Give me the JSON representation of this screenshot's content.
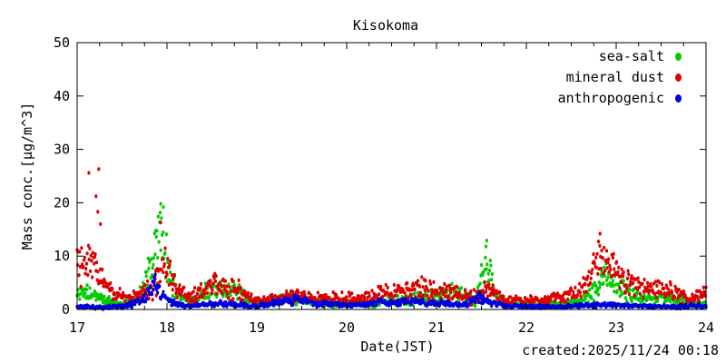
{
  "footer": {
    "created": "created:2025/11/24 00:18"
  },
  "chart_data": {
    "type": "scatter",
    "title": "Kisokoma",
    "xlabel": "Date(JST)",
    "ylabel": "Mass conc.[μg/m^3]",
    "xlim": [
      17,
      24
    ],
    "ylim": [
      0,
      50
    ],
    "x_ticks": [
      17,
      18,
      19,
      20,
      21,
      22,
      23,
      24
    ],
    "y_ticks": [
      0,
      10,
      20,
      30,
      40,
      50
    ],
    "x_minor_tick_interval": 0.25,
    "grid": false,
    "legend_position": "top-right-inside",
    "sample_interval_days": 0.007,
    "point_unit": "μg/m^3",
    "series": [
      {
        "name": "sea-salt",
        "color": "#00cc00",
        "envelope": [
          [
            17.0,
            3.0,
            1.8
          ],
          [
            17.1,
            3.2,
            1.8
          ],
          [
            17.2,
            2.5,
            1.5
          ],
          [
            17.35,
            1.5,
            1.0
          ],
          [
            17.5,
            1.0,
            0.7
          ],
          [
            17.65,
            1.5,
            1.0
          ],
          [
            17.75,
            4.0,
            2.5
          ],
          [
            17.82,
            9.0,
            5.0
          ],
          [
            17.9,
            14.0,
            6.0
          ],
          [
            17.97,
            11.0,
            7.0
          ],
          [
            18.05,
            5.0,
            3.5
          ],
          [
            18.15,
            2.0,
            1.5
          ],
          [
            18.3,
            1.5,
            1.0
          ],
          [
            18.42,
            3.5,
            2.0
          ],
          [
            18.55,
            4.5,
            2.5
          ],
          [
            18.7,
            4.0,
            2.5
          ],
          [
            18.82,
            3.0,
            2.0
          ],
          [
            18.95,
            1.5,
            1.0
          ],
          [
            19.1,
            1.3,
            0.9
          ],
          [
            19.25,
            1.8,
            1.2
          ],
          [
            19.4,
            2.2,
            1.3
          ],
          [
            19.55,
            1.8,
            1.1
          ],
          [
            19.7,
            1.2,
            0.8
          ],
          [
            19.85,
            1.0,
            0.7
          ],
          [
            20.0,
            1.2,
            0.8
          ],
          [
            20.15,
            1.0,
            0.7
          ],
          [
            20.3,
            1.2,
            0.8
          ],
          [
            20.45,
            1.5,
            1.0
          ],
          [
            20.6,
            1.8,
            1.2
          ],
          [
            20.75,
            1.8,
            1.3
          ],
          [
            20.9,
            2.2,
            1.5
          ],
          [
            21.05,
            3.0,
            1.8
          ],
          [
            21.15,
            3.5,
            2.0
          ],
          [
            21.3,
            2.5,
            1.6
          ],
          [
            21.42,
            1.5,
            1.0
          ],
          [
            21.52,
            6.0,
            4.5
          ],
          [
            21.58,
            9.0,
            4.5
          ],
          [
            21.66,
            2.5,
            1.8
          ],
          [
            21.8,
            1.2,
            0.8
          ],
          [
            22.0,
            1.0,
            0.7
          ],
          [
            22.2,
            0.8,
            0.6
          ],
          [
            22.4,
            1.0,
            0.7
          ],
          [
            22.6,
            1.5,
            1.0
          ],
          [
            22.75,
            3.5,
            2.2
          ],
          [
            22.87,
            6.0,
            3.0
          ],
          [
            23.0,
            4.5,
            2.8
          ],
          [
            23.15,
            3.0,
            2.0
          ],
          [
            23.3,
            2.2,
            1.5
          ],
          [
            23.45,
            2.0,
            1.4
          ],
          [
            23.6,
            2.2,
            1.5
          ],
          [
            23.75,
            1.5,
            1.0
          ],
          [
            23.9,
            1.0,
            0.8
          ],
          [
            24.0,
            1.0,
            0.8
          ]
        ],
        "outliers": [
          [
            17.93,
            19.8
          ],
          [
            17.96,
            19.2
          ],
          [
            21.56,
            12.9
          ],
          [
            21.55,
            11.8
          ]
        ]
      },
      {
        "name": "mineral dust",
        "color": "#dd0000",
        "envelope": [
          [
            17.0,
            7.0,
            4.5
          ],
          [
            17.1,
            9.0,
            5.0
          ],
          [
            17.2,
            8.0,
            5.0
          ],
          [
            17.3,
            5.0,
            3.0
          ],
          [
            17.42,
            2.5,
            1.8
          ],
          [
            17.55,
            2.0,
            1.5
          ],
          [
            17.68,
            2.8,
            1.8
          ],
          [
            17.78,
            3.5,
            2.2
          ],
          [
            17.88,
            6.0,
            4.0
          ],
          [
            17.95,
            9.0,
            5.0
          ],
          [
            18.03,
            8.0,
            4.0
          ],
          [
            18.12,
            4.0,
            2.5
          ],
          [
            18.25,
            2.0,
            1.5
          ],
          [
            18.4,
            3.5,
            2.2
          ],
          [
            18.52,
            4.5,
            2.8
          ],
          [
            18.65,
            4.0,
            2.8
          ],
          [
            18.78,
            3.5,
            2.5
          ],
          [
            18.9,
            2.2,
            1.5
          ],
          [
            19.05,
            1.5,
            1.0
          ],
          [
            19.2,
            1.8,
            1.2
          ],
          [
            19.35,
            2.5,
            1.5
          ],
          [
            19.5,
            2.5,
            1.5
          ],
          [
            19.65,
            2.0,
            1.3
          ],
          [
            19.8,
            2.0,
            1.3
          ],
          [
            19.95,
            2.2,
            1.5
          ],
          [
            20.1,
            1.8,
            1.2
          ],
          [
            20.25,
            2.2,
            1.5
          ],
          [
            20.4,
            3.0,
            2.0
          ],
          [
            20.55,
            3.0,
            2.0
          ],
          [
            20.7,
            4.0,
            2.5
          ],
          [
            20.85,
            3.8,
            2.5
          ],
          [
            21.0,
            3.2,
            2.0
          ],
          [
            21.15,
            3.2,
            2.0
          ],
          [
            21.3,
            2.5,
            1.6
          ],
          [
            21.45,
            2.2,
            1.5
          ],
          [
            21.55,
            4.0,
            2.2
          ],
          [
            21.7,
            2.2,
            1.5
          ],
          [
            21.85,
            1.6,
            1.2
          ],
          [
            22.0,
            1.6,
            1.2
          ],
          [
            22.15,
            1.6,
            1.1
          ],
          [
            22.3,
            2.0,
            1.4
          ],
          [
            22.45,
            2.5,
            1.6
          ],
          [
            22.6,
            3.5,
            2.0
          ],
          [
            22.7,
            6.0,
            3.0
          ],
          [
            22.8,
            10.0,
            4.0
          ],
          [
            22.9,
            9.0,
            4.0
          ],
          [
            23.0,
            7.0,
            3.5
          ],
          [
            23.1,
            5.5,
            3.0
          ],
          [
            23.22,
            4.5,
            2.5
          ],
          [
            23.35,
            4.0,
            2.2
          ],
          [
            23.5,
            4.0,
            2.2
          ],
          [
            23.65,
            3.0,
            2.0
          ],
          [
            23.8,
            2.2,
            1.5
          ],
          [
            23.92,
            2.5,
            1.6
          ],
          [
            24.0,
            3.0,
            1.6
          ]
        ],
        "outliers": [
          [
            17.13,
            25.6
          ],
          [
            17.24,
            26.3
          ],
          [
            17.21,
            21.2
          ],
          [
            17.23,
            18.3
          ],
          [
            17.26,
            16.0
          ],
          [
            17.93,
            16.3
          ],
          [
            22.82,
            14.2
          ]
        ]
      },
      {
        "name": "anthropogenic",
        "color": "#0000dd",
        "envelope": [
          [
            17.0,
            0.5,
            0.4
          ],
          [
            17.3,
            0.4,
            0.35
          ],
          [
            17.55,
            0.7,
            0.5
          ],
          [
            17.72,
            1.5,
            1.0
          ],
          [
            17.82,
            3.5,
            2.0
          ],
          [
            17.88,
            4.5,
            2.0
          ],
          [
            17.95,
            2.8,
            1.5
          ],
          [
            18.05,
            1.2,
            0.8
          ],
          [
            18.2,
            0.6,
            0.4
          ],
          [
            18.4,
            0.9,
            0.6
          ],
          [
            18.6,
            1.1,
            0.7
          ],
          [
            18.8,
            0.9,
            0.6
          ],
          [
            18.95,
            0.5,
            0.4
          ],
          [
            19.1,
            0.9,
            0.6
          ],
          [
            19.3,
            1.5,
            0.9
          ],
          [
            19.45,
            1.8,
            1.0
          ],
          [
            19.6,
            1.3,
            0.8
          ],
          [
            19.8,
            1.0,
            0.6
          ],
          [
            20.0,
            0.8,
            0.5
          ],
          [
            20.2,
            0.8,
            0.5
          ],
          [
            20.4,
            1.4,
            0.8
          ],
          [
            20.55,
            1.1,
            0.7
          ],
          [
            20.72,
            1.7,
            1.0
          ],
          [
            20.9,
            1.0,
            0.6
          ],
          [
            21.1,
            1.2,
            0.7
          ],
          [
            21.3,
            0.8,
            0.5
          ],
          [
            21.48,
            2.2,
            1.4
          ],
          [
            21.6,
            1.2,
            0.8
          ],
          [
            21.8,
            0.6,
            0.4
          ],
          [
            22.1,
            0.5,
            0.4
          ],
          [
            22.4,
            0.6,
            0.4
          ],
          [
            22.7,
            0.8,
            0.5
          ],
          [
            23.0,
            0.8,
            0.5
          ],
          [
            23.3,
            0.6,
            0.4
          ],
          [
            23.6,
            0.5,
            0.4
          ],
          [
            23.8,
            0.7,
            0.5
          ],
          [
            24.0,
            0.6,
            0.4
          ]
        ],
        "outliers": [
          [
            17.87,
            6.6
          ],
          [
            17.86,
            6.0
          ]
        ]
      }
    ]
  }
}
